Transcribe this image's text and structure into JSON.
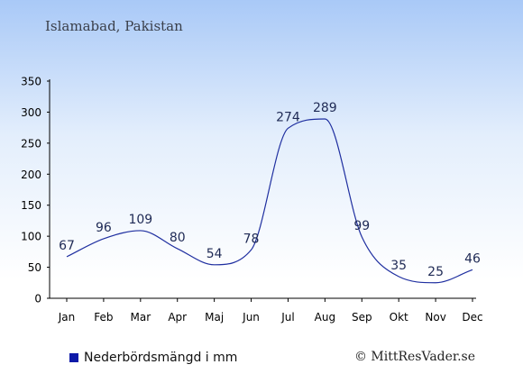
{
  "title": "Islamabad, Pakistan",
  "legend_label": "Nederbördsmängd i mm",
  "credit": "© MittResVader.se",
  "colors": {
    "line": "#1f2fa0",
    "legend": "#0d1aa8",
    "axis": "#000000",
    "text": "#1f2a55"
  },
  "chart_data": {
    "type": "line",
    "categories": [
      "Jan",
      "Feb",
      "Mar",
      "Apr",
      "Maj",
      "Jun",
      "Jul",
      "Aug",
      "Sep",
      "Okt",
      "Nov",
      "Dec"
    ],
    "series": [
      {
        "name": "Nederbördsmängd i mm",
        "values": [
          67,
          96,
          109,
          80,
          54,
          78,
          274,
          289,
          99,
          35,
          25,
          46
        ]
      }
    ],
    "ylim": [
      0,
      350
    ],
    "yticks": [
      0,
      50,
      100,
      150,
      200,
      250,
      300,
      350
    ],
    "grid": false,
    "smooth": true,
    "legend_position": "bottom-left"
  }
}
